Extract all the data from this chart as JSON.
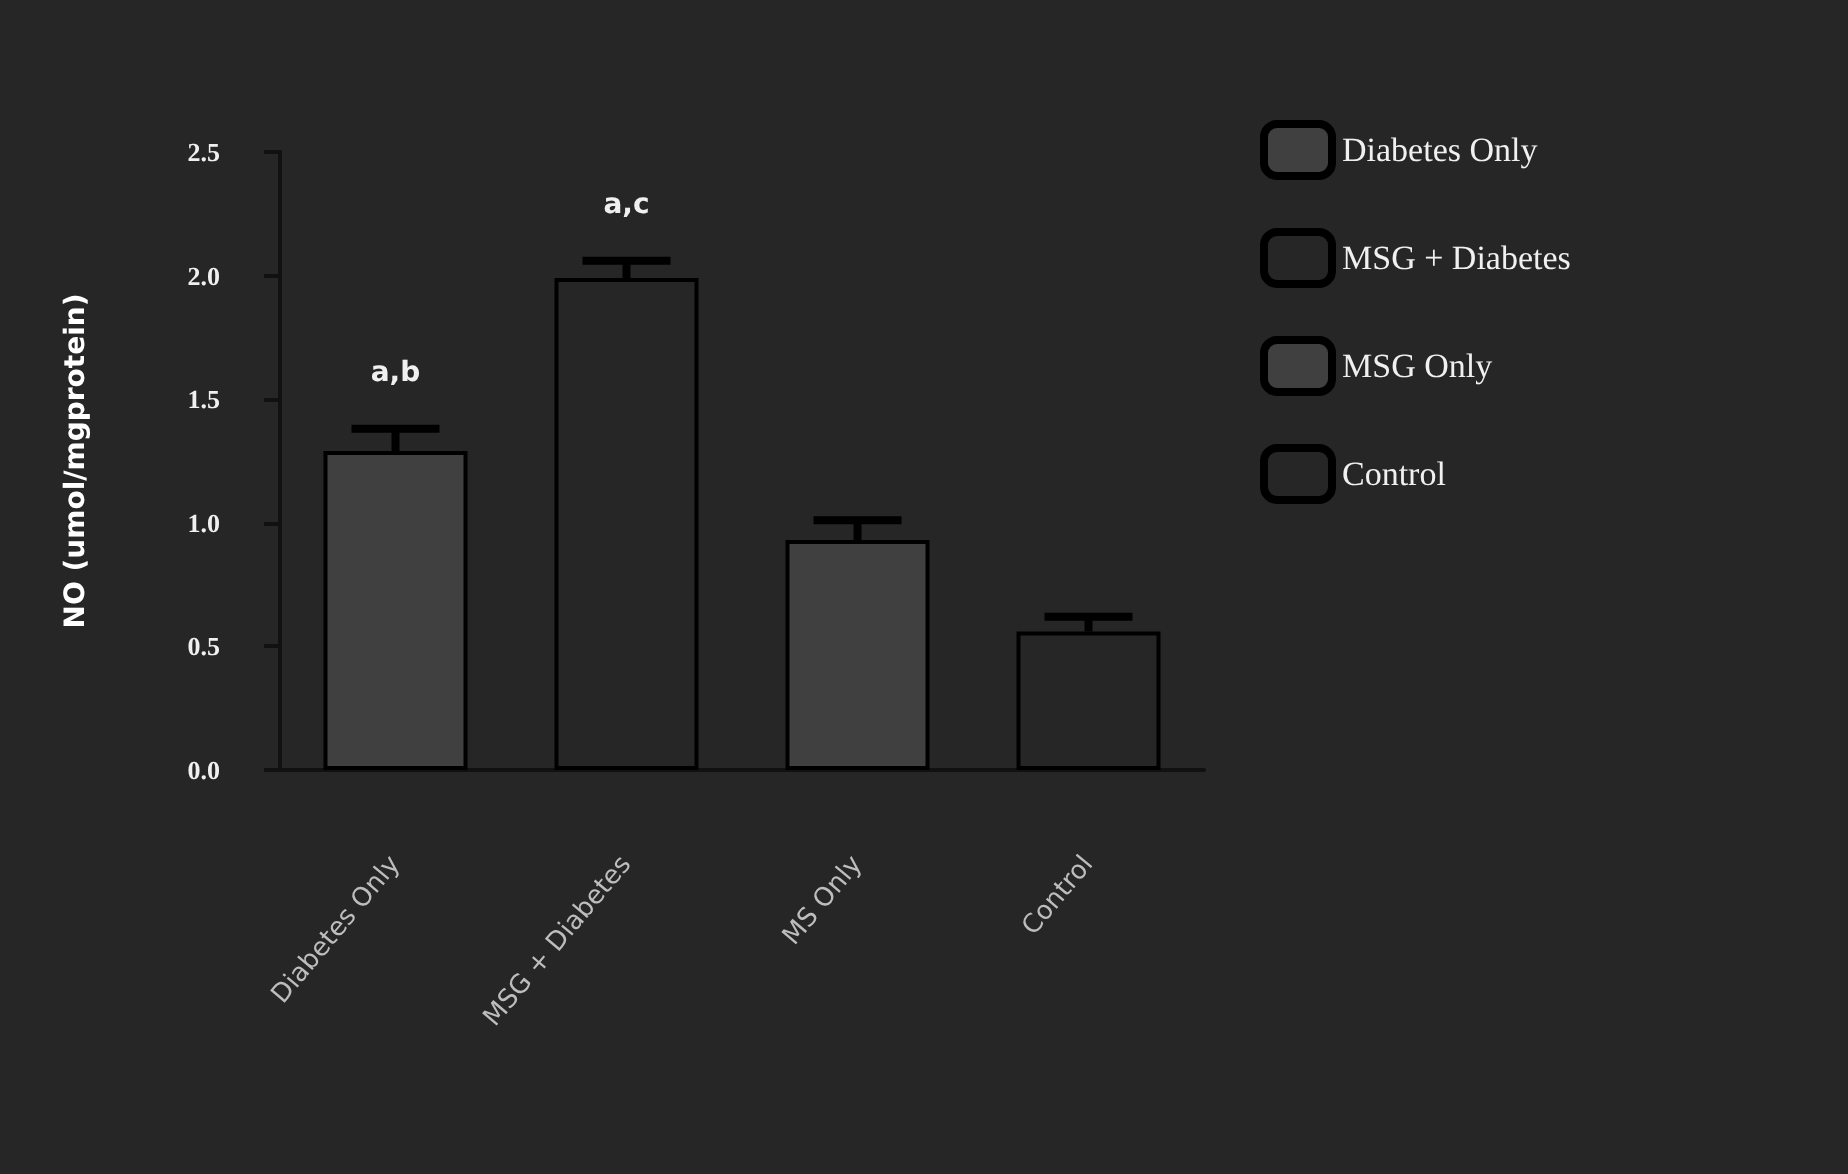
{
  "chart_data": {
    "type": "bar",
    "ylabel": "NO (umol/mgprotein)",
    "categories": [
      "Diabetes Only",
      "MSG + Diabetes",
      "MS Only",
      "Control"
    ],
    "series": [
      {
        "name": "Diabetes Only",
        "color": "#404040",
        "values": [
          1.29,
          null,
          null,
          null
        ],
        "errors": [
          [
            1.29,
            1.38
          ],
          null,
          null,
          null
        ]
      },
      {
        "name": "MSG + Diabetes",
        "color": "#262626",
        "values": [
          null,
          1.99,
          null,
          null
        ],
        "errors": [
          null,
          [
            1.99,
            2.06
          ],
          null,
          null
        ]
      },
      {
        "name": "MSG Only",
        "color": "#404040",
        "values": [
          null,
          null,
          0.93,
          null
        ],
        "errors": [
          null,
          null,
          [
            0.93,
            1.01
          ],
          null
        ]
      },
      {
        "name": "Control",
        "color": "#262626",
        "values": [
          null,
          null,
          null,
          0.56
        ],
        "errors": [
          null,
          null,
          null,
          [
            0.56,
            0.62
          ]
        ]
      }
    ],
    "ylim": [
      0,
      2.5
    ],
    "yticks": [
      {
        "value": 0,
        "label": "0.0"
      },
      {
        "value": 0.5,
        "label": "0.5"
      },
      {
        "value": 1,
        "label": "1.0"
      },
      {
        "value": 1.5,
        "label": "1.5"
      },
      {
        "value": 2,
        "label": "2.0"
      },
      {
        "value": 2.5,
        "label": "2.5"
      }
    ],
    "annotations": [
      "a,b",
      "a,c"
    ],
    "legend": "top right",
    "grid": false
  }
}
